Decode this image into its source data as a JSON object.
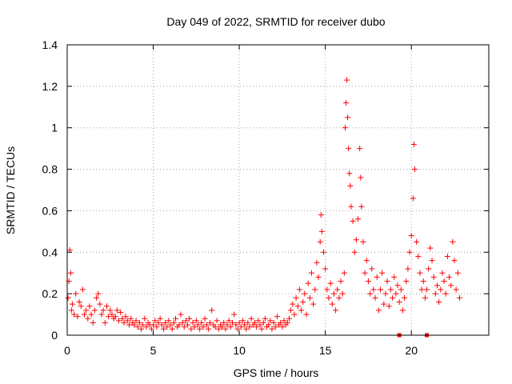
{
  "chart_data": {
    "type": "scatter",
    "title": "Day 049 of 2022, SRMTID for receiver dubo",
    "xlabel": "GPS time / hours",
    "ylabel": "SRMTID / TECUs",
    "xlim": [
      0,
      24.5
    ],
    "ylim": [
      0,
      1.4
    ],
    "x_ticks": [
      0,
      5,
      10,
      15,
      20
    ],
    "y_ticks": [
      0,
      0.2,
      0.4,
      0.6,
      0.8,
      1,
      1.2,
      1.4
    ],
    "x_tick_labels": [
      "0",
      "5",
      "10",
      "15",
      "20"
    ],
    "y_tick_labels": [
      "0",
      "0.2",
      "0.4",
      "0.6",
      "0.8",
      "1",
      "1.2",
      "1.4"
    ],
    "grid": true,
    "marker": "+",
    "color": "#ff0000",
    "series": [
      {
        "name": "SRMTID",
        "points": [
          [
            0.05,
            0.18
          ],
          [
            0.1,
            0.26
          ],
          [
            0.15,
            0.41
          ],
          [
            0.2,
            0.3
          ],
          [
            0.25,
            0.12
          ],
          [
            0.3,
            0.15
          ],
          [
            0.4,
            0.1
          ],
          [
            0.5,
            0.2
          ],
          [
            0.6,
            0.09
          ],
          [
            0.7,
            0.16
          ],
          [
            0.8,
            0.14
          ],
          [
            0.9,
            0.22
          ],
          [
            1.0,
            0.1
          ],
          [
            1.1,
            0.12
          ],
          [
            1.2,
            0.08
          ],
          [
            1.3,
            0.14
          ],
          [
            1.4,
            0.1
          ],
          [
            1.5,
            0.06
          ],
          [
            1.6,
            0.12
          ],
          [
            1.7,
            0.18
          ],
          [
            1.8,
            0.2
          ],
          [
            1.9,
            0.15
          ],
          [
            2.0,
            0.1
          ],
          [
            2.1,
            0.12
          ],
          [
            2.2,
            0.06
          ],
          [
            2.3,
            0.14
          ],
          [
            2.4,
            0.09
          ],
          [
            2.5,
            0.12
          ],
          [
            2.6,
            0.1
          ],
          [
            2.7,
            0.08
          ],
          [
            2.8,
            0.09
          ],
          [
            2.9,
            0.12
          ],
          [
            3.0,
            0.07
          ],
          [
            3.1,
            0.11
          ],
          [
            3.2,
            0.08
          ],
          [
            3.3,
            0.06
          ],
          [
            3.4,
            0.09
          ],
          [
            3.5,
            0.07
          ],
          [
            3.6,
            0.05
          ],
          [
            3.7,
            0.08
          ],
          [
            3.8,
            0.06
          ],
          [
            3.9,
            0.05
          ],
          [
            4.0,
            0.07
          ],
          [
            4.1,
            0.04
          ],
          [
            4.2,
            0.06
          ],
          [
            4.3,
            0.03
          ],
          [
            4.4,
            0.05
          ],
          [
            4.5,
            0.08
          ],
          [
            4.6,
            0.04
          ],
          [
            4.7,
            0.06
          ],
          [
            4.8,
            0.05
          ],
          [
            4.9,
            0.03
          ],
          [
            5.0,
            0.05
          ],
          [
            5.1,
            0.07
          ],
          [
            5.2,
            0.04
          ],
          [
            5.3,
            0.06
          ],
          [
            5.4,
            0.08
          ],
          [
            5.5,
            0.05
          ],
          [
            5.6,
            0.03
          ],
          [
            5.7,
            0.06
          ],
          [
            5.8,
            0.04
          ],
          [
            5.9,
            0.07
          ],
          [
            6.0,
            0.05
          ],
          [
            6.1,
            0.03
          ],
          [
            6.2,
            0.06
          ],
          [
            6.3,
            0.08
          ],
          [
            6.4,
            0.04
          ],
          [
            6.5,
            0.05
          ],
          [
            6.6,
            0.1
          ],
          [
            6.7,
            0.06
          ],
          [
            6.8,
            0.04
          ],
          [
            6.9,
            0.07
          ],
          [
            7.0,
            0.05
          ],
          [
            7.1,
            0.08
          ],
          [
            7.2,
            0.03
          ],
          [
            7.3,
            0.06
          ],
          [
            7.4,
            0.04
          ],
          [
            7.5,
            0.07
          ],
          [
            7.6,
            0.05
          ],
          [
            7.7,
            0.03
          ],
          [
            7.8,
            0.06
          ],
          [
            7.9,
            0.04
          ],
          [
            8.0,
            0.08
          ],
          [
            8.1,
            0.05
          ],
          [
            8.2,
            0.03
          ],
          [
            8.3,
            0.06
          ],
          [
            8.4,
            0.12
          ],
          [
            8.5,
            0.05
          ],
          [
            8.6,
            0.04
          ],
          [
            8.7,
            0.07
          ],
          [
            8.8,
            0.03
          ],
          [
            8.9,
            0.05
          ],
          [
            9.0,
            0.04
          ],
          [
            9.1,
            0.06
          ],
          [
            9.2,
            0.03
          ],
          [
            9.3,
            0.05
          ],
          [
            9.4,
            0.07
          ],
          [
            9.5,
            0.04
          ],
          [
            9.6,
            0.06
          ],
          [
            9.7,
            0.1
          ],
          [
            9.8,
            0.05
          ],
          [
            9.9,
            0.03
          ],
          [
            10.0,
            0.06
          ],
          [
            10.1,
            0.04
          ],
          [
            10.2,
            0.07
          ],
          [
            10.3,
            0.05
          ],
          [
            10.4,
            0.03
          ],
          [
            10.5,
            0.06
          ],
          [
            10.6,
            0.04
          ],
          [
            10.7,
            0.08
          ],
          [
            10.8,
            0.05
          ],
          [
            10.9,
            0.06
          ],
          [
            11.0,
            0.04
          ],
          [
            11.1,
            0.07
          ],
          [
            11.2,
            0.05
          ],
          [
            11.3,
            0.03
          ],
          [
            11.4,
            0.06
          ],
          [
            11.5,
            0.08
          ],
          [
            11.6,
            0.04
          ],
          [
            11.7,
            0.05
          ],
          [
            11.8,
            0.07
          ],
          [
            11.9,
            0.03
          ],
          [
            12.0,
            0.06
          ],
          [
            12.1,
            0.04
          ],
          [
            12.2,
            0.09
          ],
          [
            12.3,
            0.05
          ],
          [
            12.4,
            0.06
          ],
          [
            12.5,
            0.04
          ],
          [
            12.6,
            0.07
          ],
          [
            12.7,
            0.05
          ],
          [
            12.8,
            0.06
          ],
          [
            12.9,
            0.08
          ],
          [
            13.0,
            0.12
          ],
          [
            13.1,
            0.15
          ],
          [
            13.2,
            0.1
          ],
          [
            13.3,
            0.18
          ],
          [
            13.4,
            0.14
          ],
          [
            13.5,
            0.22
          ],
          [
            13.6,
            0.12
          ],
          [
            13.7,
            0.16
          ],
          [
            13.8,
            0.2
          ],
          [
            13.9,
            0.1
          ],
          [
            14.0,
            0.25
          ],
          [
            14.1,
            0.18
          ],
          [
            14.2,
            0.3
          ],
          [
            14.3,
            0.15
          ],
          [
            14.4,
            0.22
          ],
          [
            14.5,
            0.35
          ],
          [
            14.6,
            0.28
          ],
          [
            14.7,
            0.45
          ],
          [
            14.75,
            0.58
          ],
          [
            14.8,
            0.5
          ],
          [
            14.9,
            0.4
          ],
          [
            15.0,
            0.32
          ],
          [
            15.1,
            0.22
          ],
          [
            15.2,
            0.18
          ],
          [
            15.3,
            0.25
          ],
          [
            15.4,
            0.15
          ],
          [
            15.5,
            0.2
          ],
          [
            15.6,
            0.12
          ],
          [
            15.7,
            0.22
          ],
          [
            15.8,
            0.18
          ],
          [
            15.9,
            0.26
          ],
          [
            16.0,
            0.2
          ],
          [
            16.1,
            0.3
          ],
          [
            16.15,
            1.0
          ],
          [
            16.2,
            1.12
          ],
          [
            16.25,
            1.23
          ],
          [
            16.3,
            1.05
          ],
          [
            16.35,
            0.9
          ],
          [
            16.4,
            0.78
          ],
          [
            16.45,
            0.72
          ],
          [
            16.5,
            0.62
          ],
          [
            16.6,
            0.55
          ],
          [
            16.7,
            0.4
          ],
          [
            16.8,
            0.46
          ],
          [
            16.9,
            0.56
          ],
          [
            17.0,
            0.9
          ],
          [
            17.05,
            0.76
          ],
          [
            17.1,
            0.62
          ],
          [
            17.2,
            0.45
          ],
          [
            17.3,
            0.3
          ],
          [
            17.4,
            0.36
          ],
          [
            17.5,
            0.26
          ],
          [
            17.6,
            0.2
          ],
          [
            17.7,
            0.32
          ],
          [
            17.8,
            0.22
          ],
          [
            17.9,
            0.18
          ],
          [
            18.0,
            0.28
          ],
          [
            18.1,
            0.12
          ],
          [
            18.2,
            0.22
          ],
          [
            18.3,
            0.3
          ],
          [
            18.4,
            0.15
          ],
          [
            18.5,
            0.2
          ],
          [
            18.6,
            0.26
          ],
          [
            18.7,
            0.14
          ],
          [
            18.8,
            0.22
          ],
          [
            18.9,
            0.18
          ],
          [
            19.0,
            0.28
          ],
          [
            19.1,
            0.2
          ],
          [
            19.2,
            0.24
          ],
          [
            19.3,
            0.16
          ],
          [
            19.4,
            0.22
          ],
          [
            19.5,
            0.12
          ],
          [
            19.6,
            0.18
          ],
          [
            19.7,
            0.26
          ],
          [
            19.8,
            0.32
          ],
          [
            19.9,
            0.4
          ],
          [
            20.0,
            0.48
          ],
          [
            20.1,
            0.66
          ],
          [
            20.15,
            0.92
          ],
          [
            20.2,
            0.8
          ],
          [
            20.3,
            0.45
          ],
          [
            20.4,
            0.38
          ],
          [
            20.5,
            0.3
          ],
          [
            20.6,
            0.22
          ],
          [
            20.7,
            0.26
          ],
          [
            20.8,
            0.18
          ],
          [
            20.9,
            0.22
          ],
          [
            21.0,
            0.32
          ],
          [
            21.1,
            0.42
          ],
          [
            21.2,
            0.36
          ],
          [
            21.3,
            0.28
          ],
          [
            21.4,
            0.2
          ],
          [
            21.5,
            0.24
          ],
          [
            21.6,
            0.16
          ],
          [
            21.7,
            0.22
          ],
          [
            21.8,
            0.3
          ],
          [
            21.9,
            0.26
          ],
          [
            22.0,
            0.2
          ],
          [
            22.1,
            0.38
          ],
          [
            22.2,
            0.28
          ],
          [
            22.3,
            0.24
          ],
          [
            22.4,
            0.45
          ],
          [
            22.5,
            0.36
          ],
          [
            22.6,
            0.22
          ],
          [
            22.7,
            0.3
          ],
          [
            22.8,
            0.18
          ]
        ]
      }
    ],
    "base_points": [
      [
        19.3,
        0
      ],
      [
        20.9,
        0
      ]
    ]
  }
}
